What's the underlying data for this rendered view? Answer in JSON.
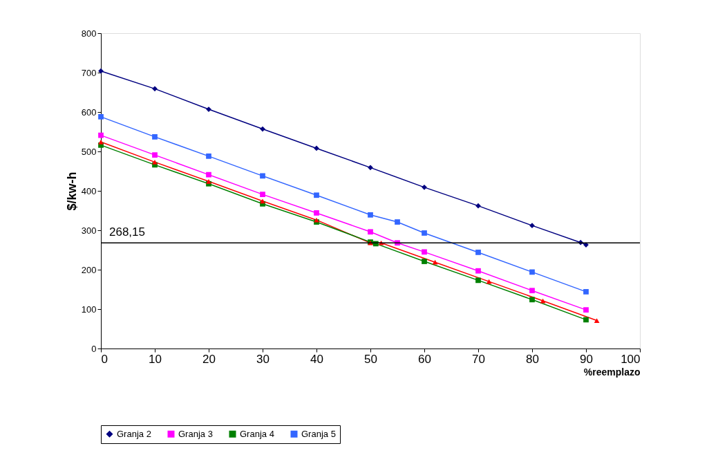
{
  "chart_data": {
    "type": "line",
    "xlabel": "%reemplazo",
    "ylabel": "$/kw-h",
    "xlim": [
      0,
      100
    ],
    "xticks": [
      0,
      10,
      20,
      30,
      40,
      50,
      60,
      70,
      80,
      90,
      100
    ],
    "ylim": [
      0,
      800
    ],
    "yticks": [
      0,
      100,
      200,
      300,
      400,
      500,
      600,
      700,
      800
    ],
    "grid": false,
    "legend": "bottom",
    "ref_lines": [
      {
        "axis": "y",
        "value": 268.15,
        "label": "268,15",
        "color": "#000000"
      }
    ],
    "series": [
      {
        "name": "Granja 2",
        "color": "#000080",
        "marker": "diamond",
        "x": [
          0,
          10,
          20,
          30,
          40,
          50,
          60,
          70,
          80,
          89,
          90
        ],
        "values": [
          704,
          659,
          607,
          557,
          508,
          459,
          409,
          362,
          312,
          269,
          263
        ]
      },
      {
        "name": "Granja 3",
        "color": "#ff00ff",
        "marker": "square",
        "x": [
          0,
          10,
          20,
          30,
          40,
          50,
          55,
          60,
          70,
          80,
          90
        ],
        "values": [
          541,
          491,
          441,
          391,
          344,
          296,
          268,
          245,
          197,
          147,
          98
        ]
      },
      {
        "color": "#ff0000",
        "marker": "triangle",
        "x": [
          0,
          10,
          20,
          30,
          40,
          50,
          52,
          62,
          72,
          82,
          92
        ],
        "values": [
          524,
          473,
          424,
          374,
          326,
          268,
          268,
          219,
          170,
          121,
          71
        ]
      },
      {
        "name": "Granja 4",
        "color": "#008000",
        "marker": "square",
        "x": [
          0,
          10,
          20,
          30,
          40,
          50,
          51,
          60,
          70,
          80,
          90
        ],
        "values": [
          516,
          466,
          418,
          367,
          321,
          270,
          266,
          221,
          173,
          124,
          73
        ]
      },
      {
        "name": "Granja 5",
        "color": "#3366ff",
        "marker": "square",
        "x": [
          0,
          10,
          20,
          30,
          40,
          50,
          55,
          60,
          70,
          80,
          90
        ],
        "values": [
          588,
          537,
          488,
          438,
          389,
          339,
          321,
          293,
          244,
          194,
          144
        ]
      }
    ]
  }
}
